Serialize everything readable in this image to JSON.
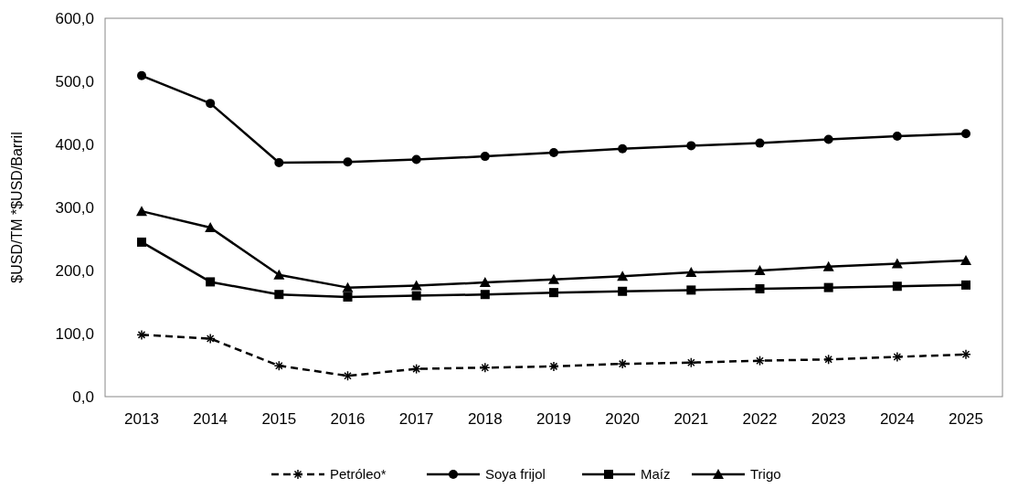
{
  "chart_data": {
    "type": "line",
    "ylabel": "$USD/TM *$USD/Barril",
    "categories": [
      "2013",
      "2014",
      "2015",
      "2016",
      "2017",
      "2018",
      "2019",
      "2020",
      "2021",
      "2022",
      "2023",
      "2024",
      "2025"
    ],
    "ylim": [
      0,
      600
    ],
    "yticks": [
      {
        "value": 0,
        "label": "0,0"
      },
      {
        "value": 100,
        "label": "100,0"
      },
      {
        "value": 200,
        "label": "200,0"
      },
      {
        "value": 300,
        "label": "300,0"
      },
      {
        "value": 400,
        "label": "400,0"
      },
      {
        "value": 500,
        "label": "500,0"
      },
      {
        "value": 600,
        "label": "600,0"
      }
    ],
    "grid": false,
    "legend": "bottom",
    "series": [
      {
        "name": "Petróleo*",
        "color": "#000000",
        "marker": "cross",
        "line_style": "dashed",
        "values": [
          98,
          92,
          49,
          33,
          44,
          46,
          48,
          52,
          54,
          57,
          59,
          63,
          67
        ]
      },
      {
        "name": "Soya frijol",
        "color": "#000000",
        "marker": "circle",
        "line_style": "solid",
        "values": [
          509,
          465,
          371,
          372,
          376,
          381,
          387,
          393,
          398,
          402,
          408,
          413,
          417
        ]
      },
      {
        "name": "Maíz",
        "color": "#000000",
        "marker": "square",
        "line_style": "solid",
        "values": [
          245,
          182,
          162,
          158,
          160,
          162,
          165,
          167,
          169,
          171,
          173,
          175,
          177
        ]
      },
      {
        "name": "Trigo",
        "color": "#000000",
        "marker": "triangle",
        "line_style": "solid",
        "values": [
          294,
          268,
          193,
          173,
          176,
          181,
          186,
          191,
          197,
          200,
          206,
          211,
          216
        ]
      }
    ]
  }
}
